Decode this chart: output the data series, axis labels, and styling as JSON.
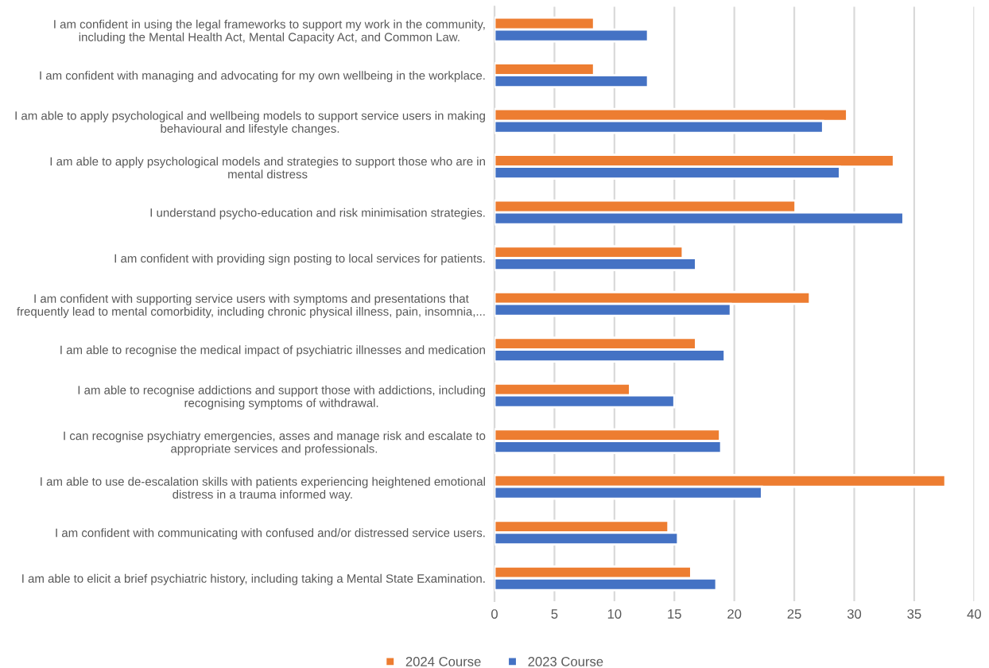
{
  "chart_data": {
    "type": "bar",
    "orientation": "horizontal",
    "categories": [
      "I am confident in using the legal frameworks to support my work in the community,\nincluding the Mental Health Act, Mental Capacity Act, and Common Law.",
      "I am confident with managing and advocating for my own wellbeing in the workplace.",
      "I am able to apply psychological and wellbeing models to support service users in making\nbehavioural and lifestyle changes.",
      "I am able to apply psychological models and strategies to support those who are in\nmental distress",
      "I understand psycho-education and risk minimisation strategies.",
      "I am confident with providing sign posting to local services for patients.",
      "I am confident with supporting service users with symptoms and presentations that\nfrequently lead to mental comorbidity, including chronic physical illness, pain, insomnia,...",
      "I am able to recognise the medical impact of psychiatric illnesses and medication",
      "I am able to recognise addictions and support those with addictions, including\nrecognising symptoms of withdrawal.",
      "I can recognise psychiatry emergencies, asses and manage risk and escalate to\nappropriate services and professionals.",
      "I am able to use de-escalation skills with patients experiencing heightened emotional\ndistress in a trauma informed way.",
      "I am confident with communicating with confused and/or distressed service users.",
      "I am able to elicit a brief psychiatric history, including taking a Mental State Examination."
    ],
    "series": [
      {
        "name": "2024 Course",
        "color": "#ed7d31",
        "values": [
          8.3,
          8.3,
          29.4,
          33.3,
          25.1,
          15.7,
          26.3,
          16.8,
          11.3,
          18.8,
          37.6,
          14.5,
          16.4
        ]
      },
      {
        "name": "2023 Course",
        "color": "#4472c4",
        "values": [
          12.8,
          12.8,
          27.4,
          28.8,
          34.1,
          16.8,
          19.7,
          19.2,
          15.0,
          18.9,
          22.3,
          15.3,
          18.5
        ]
      }
    ],
    "xlim": [
      0,
      40
    ],
    "xticks": [
      0,
      5,
      10,
      15,
      20,
      25,
      30,
      35,
      40
    ],
    "grid": "x",
    "legend": "bottom"
  }
}
